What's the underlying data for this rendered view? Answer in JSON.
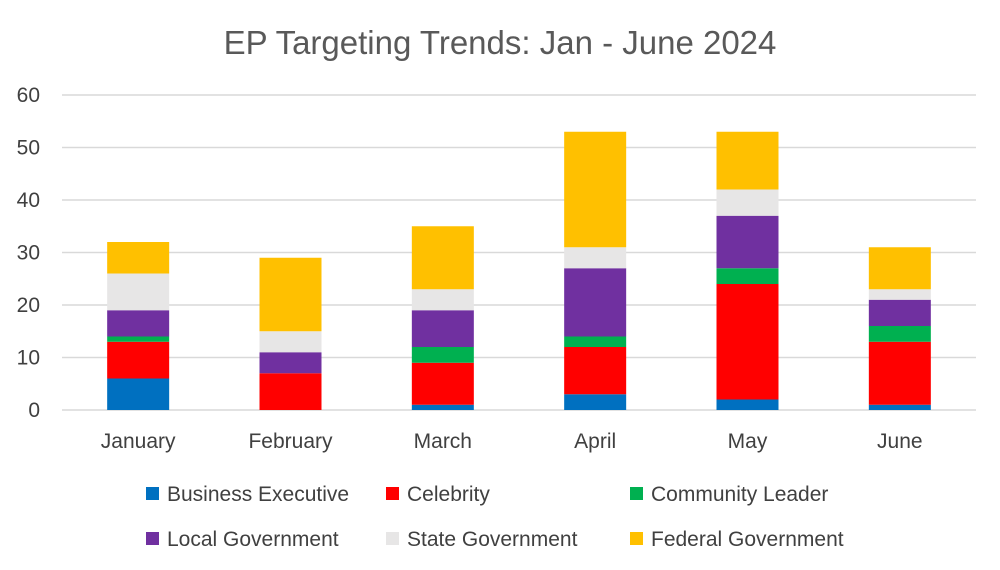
{
  "chart_data": {
    "type": "bar",
    "stacked": true,
    "title": "EP Targeting Trends: Jan - June 2024",
    "xlabel": "",
    "ylabel": "",
    "ylim": [
      0,
      60
    ],
    "yticks": [
      0,
      10,
      20,
      30,
      40,
      50,
      60
    ],
    "grid": true,
    "legend_position": "bottom",
    "categories": [
      "January",
      "February",
      "March",
      "April",
      "May",
      "June"
    ],
    "series": [
      {
        "name": "Business Executive",
        "color": "#0070C0",
        "values": [
          6,
          0,
          1,
          3,
          2,
          1
        ]
      },
      {
        "name": "Celebrity",
        "color": "#FF0000",
        "values": [
          7,
          7,
          8,
          9,
          22,
          12
        ]
      },
      {
        "name": "Community Leader",
        "color": "#00B050",
        "values": [
          1,
          0,
          3,
          2,
          3,
          3
        ]
      },
      {
        "name": "Local Government",
        "color": "#7030A0",
        "values": [
          5,
          4,
          7,
          13,
          10,
          5
        ]
      },
      {
        "name": "State Government",
        "color": "#E7E6E6",
        "values": [
          7,
          4,
          4,
          4,
          5,
          2
        ]
      },
      {
        "name": "Federal Government",
        "color": "#FFC000",
        "values": [
          6,
          14,
          12,
          22,
          11,
          8
        ]
      }
    ]
  }
}
